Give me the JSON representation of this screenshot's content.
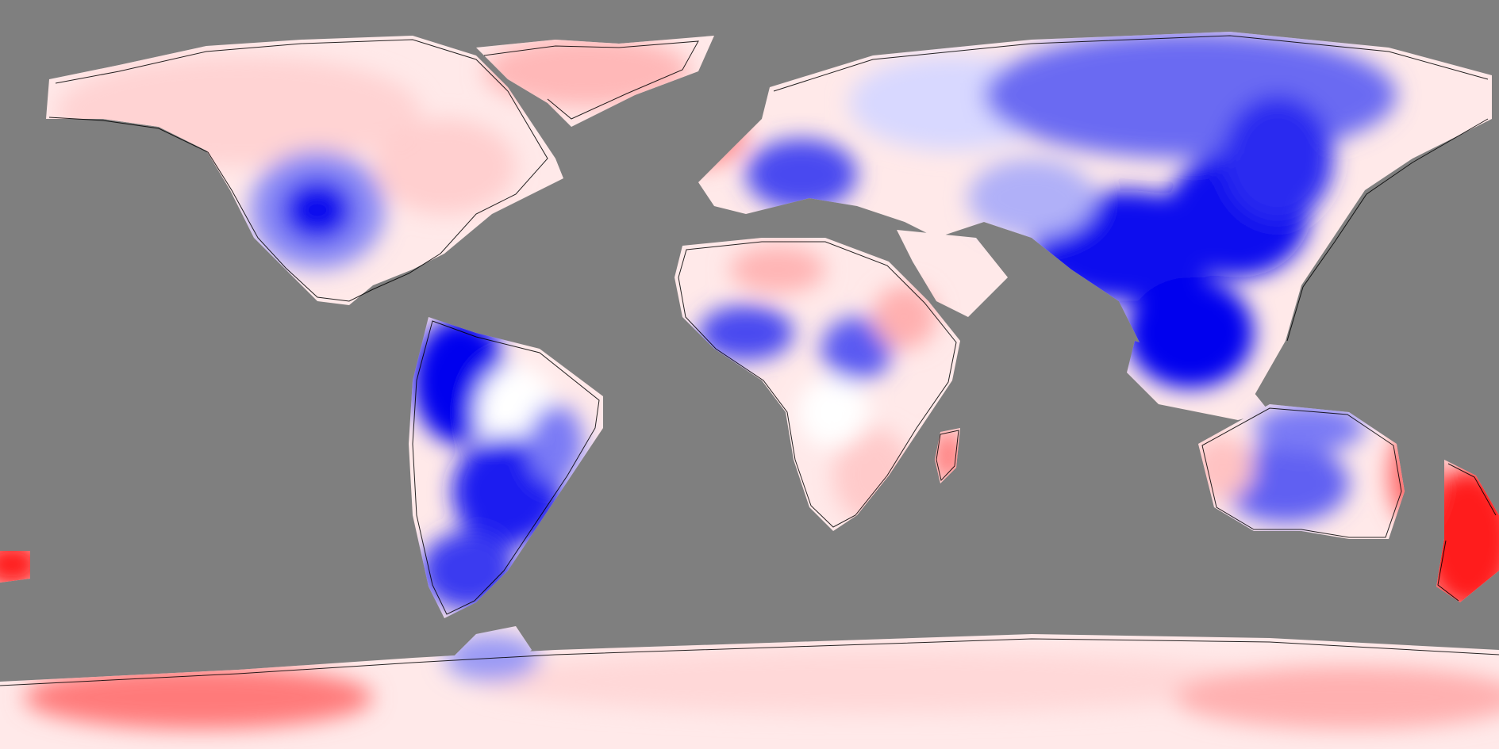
{
  "map": {
    "projection": "equirectangular",
    "background_color": "#7f7f7f",
    "palette": {
      "strong_negative": "#0000ee",
      "mid_negative": "#5a5af2",
      "light_negative": "#b8b8f8",
      "neutral": "#ffffff",
      "light_positive": "#ffd6d6",
      "mid_positive": "#ff9a9a",
      "strong_positive": "#ff1a1a"
    },
    "coastline_color": "#000000",
    "no_data_color": "#7f7f7f",
    "labels": []
  }
}
